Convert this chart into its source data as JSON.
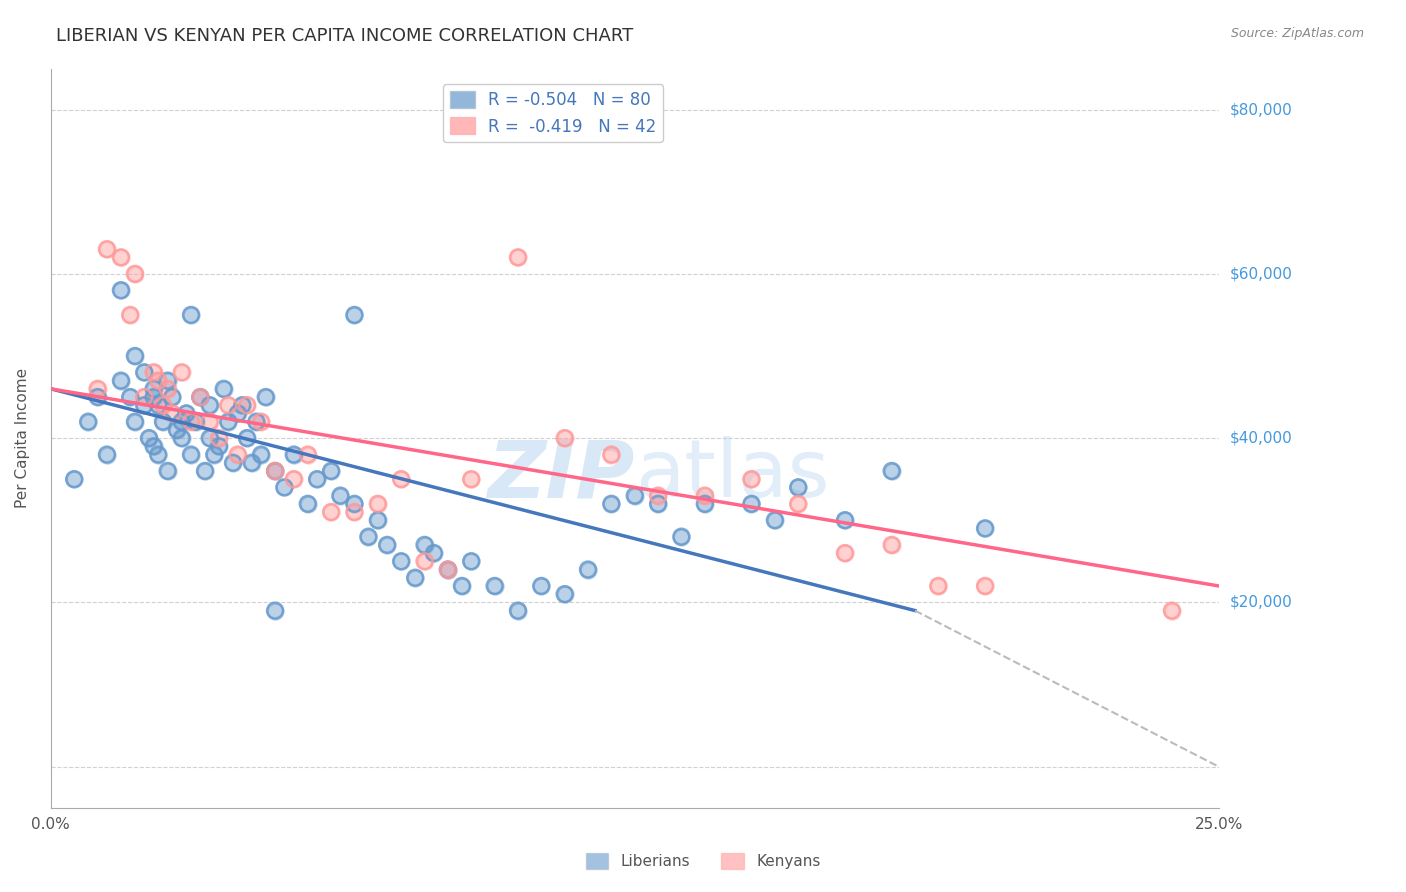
{
  "title": "LIBERIAN VS KENYAN PER CAPITA INCOME CORRELATION CHART",
  "source_text": "Source: ZipAtlas.com",
  "xlabel": "",
  "ylabel": "Per Capita Income",
  "xlim": [
    0.0,
    0.25
  ],
  "ylim": [
    -5000,
    85000
  ],
  "yticks": [
    0,
    20000,
    40000,
    60000,
    80000
  ],
  "xticks": [
    0.0,
    0.05,
    0.1,
    0.15,
    0.2,
    0.25
  ],
  "xtick_labels": [
    "0.0%",
    "",
    "",
    "",
    "",
    "25.0%"
  ],
  "legend_label1": "R = -0.504   N = 80",
  "legend_label2": "R =  -0.419   N = 42",
  "color_blue": "#6699CC",
  "color_pink": "#FF9999",
  "color_blue_line": "#4477BB",
  "color_pink_line": "#FF6688",
  "watermark_zip": "ZIP",
  "watermark_atlas": "atlas",
  "watermark_color_zip": "#AACCEE",
  "watermark_color_atlas": "#AACCEE",
  "background_color": "#FFFFFF",
  "grid_color": "#CCCCCC",
  "axis_color": "#AAAAAA",
  "right_label_color": "#4499DD",
  "liberians_x": [
    0.005,
    0.008,
    0.01,
    0.012,
    0.015,
    0.015,
    0.017,
    0.018,
    0.018,
    0.02,
    0.02,
    0.021,
    0.022,
    0.022,
    0.023,
    0.023,
    0.024,
    0.025,
    0.025,
    0.026,
    0.027,
    0.028,
    0.028,
    0.029,
    0.03,
    0.03,
    0.031,
    0.032,
    0.033,
    0.034,
    0.034,
    0.035,
    0.036,
    0.037,
    0.038,
    0.039,
    0.04,
    0.041,
    0.042,
    0.043,
    0.044,
    0.045,
    0.046,
    0.048,
    0.05,
    0.052,
    0.055,
    0.057,
    0.06,
    0.062,
    0.065,
    0.068,
    0.07,
    0.072,
    0.075,
    0.078,
    0.08,
    0.082,
    0.085,
    0.088,
    0.09,
    0.095,
    0.1,
    0.105,
    0.11,
    0.115,
    0.12,
    0.125,
    0.13,
    0.14,
    0.15,
    0.155,
    0.16,
    0.17,
    0.18,
    0.2,
    0.135,
    0.065,
    0.048,
    0.022
  ],
  "liberians_y": [
    35000,
    42000,
    45000,
    38000,
    58000,
    47000,
    45000,
    42000,
    50000,
    44000,
    48000,
    40000,
    46000,
    39000,
    44000,
    38000,
    42000,
    47000,
    36000,
    45000,
    41000,
    42000,
    40000,
    43000,
    38000,
    55000,
    42000,
    45000,
    36000,
    44000,
    40000,
    38000,
    39000,
    46000,
    42000,
    37000,
    43000,
    44000,
    40000,
    37000,
    42000,
    38000,
    45000,
    36000,
    34000,
    38000,
    32000,
    35000,
    36000,
    33000,
    32000,
    28000,
    30000,
    27000,
    25000,
    23000,
    27000,
    26000,
    24000,
    22000,
    25000,
    22000,
    19000,
    22000,
    21000,
    24000,
    32000,
    33000,
    32000,
    32000,
    32000,
    30000,
    34000,
    30000,
    36000,
    29000,
    28000,
    55000,
    19000,
    45000
  ],
  "kenyans_x": [
    0.01,
    0.012,
    0.015,
    0.017,
    0.018,
    0.02,
    0.022,
    0.023,
    0.024,
    0.025,
    0.026,
    0.028,
    0.03,
    0.032,
    0.034,
    0.036,
    0.038,
    0.04,
    0.042,
    0.045,
    0.048,
    0.052,
    0.055,
    0.06,
    0.065,
    0.07,
    0.075,
    0.08,
    0.085,
    0.09,
    0.1,
    0.11,
    0.12,
    0.13,
    0.14,
    0.15,
    0.16,
    0.17,
    0.18,
    0.19,
    0.2,
    0.24
  ],
  "kenyans_y": [
    46000,
    63000,
    62000,
    55000,
    60000,
    45000,
    48000,
    47000,
    44000,
    46000,
    43000,
    48000,
    42000,
    45000,
    42000,
    40000,
    44000,
    38000,
    44000,
    42000,
    36000,
    35000,
    38000,
    31000,
    31000,
    32000,
    35000,
    25000,
    24000,
    35000,
    62000,
    40000,
    38000,
    33000,
    33000,
    35000,
    32000,
    26000,
    27000,
    22000,
    22000,
    19000
  ],
  "blue_line_x": [
    0.0,
    0.185
  ],
  "blue_line_y": [
    46000,
    19000
  ],
  "pink_line_x": [
    0.0,
    0.25
  ],
  "pink_line_y": [
    46000,
    22000
  ],
  "dashed_line_x": [
    0.185,
    0.25
  ],
  "dashed_line_y": [
    19000,
    0
  ]
}
